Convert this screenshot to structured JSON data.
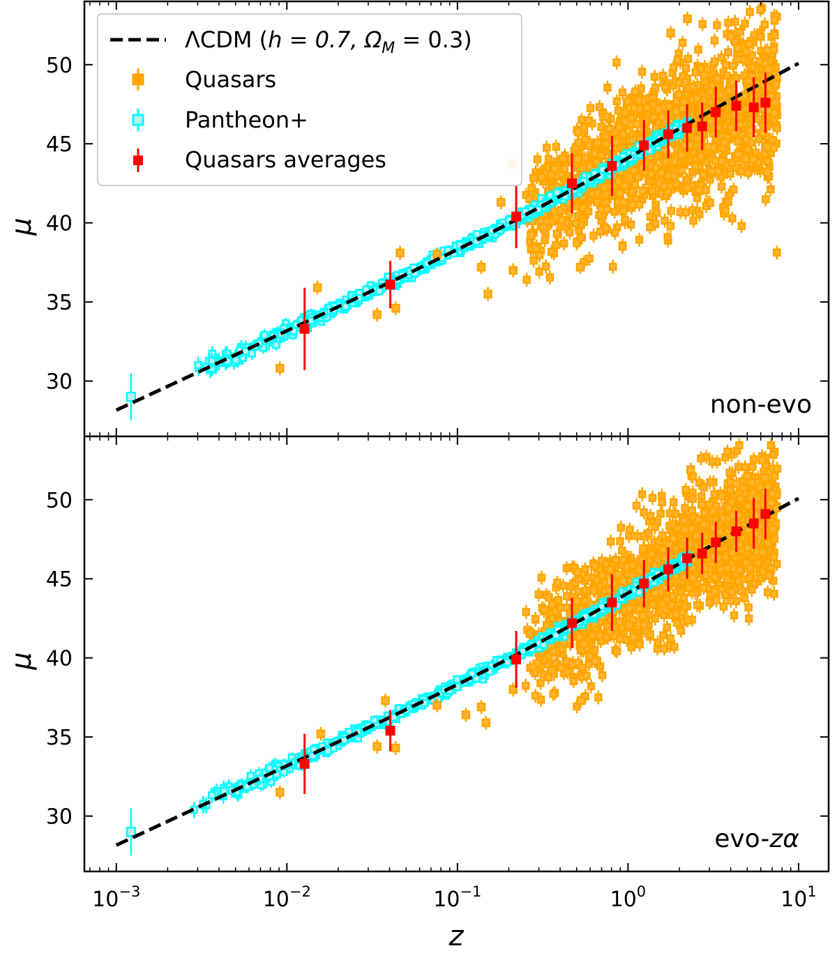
{
  "chart_data": {
    "type": "scatter",
    "xscale": "log",
    "xlim": [
      0.00065,
      15
    ],
    "ylim": [
      26.5,
      54
    ],
    "xlabel": "z",
    "ylabel": "μ",
    "xticks": [
      {
        "value": 0.001,
        "base": "10",
        "exp": "−3"
      },
      {
        "value": 0.01,
        "base": "10",
        "exp": "−2"
      },
      {
        "value": 0.1,
        "base": "10",
        "exp": "−1"
      },
      {
        "value": 1,
        "base": "10",
        "exp": "0"
      },
      {
        "value": 10,
        "base": "10",
        "exp": "1"
      }
    ],
    "yticks": [
      30,
      35,
      40,
      45,
      50
    ],
    "legend": {
      "position": "top-left",
      "entries": [
        {
          "key": "lcdm",
          "label_prefix": "ΛCDM (",
          "label_math": "h = 0.7, Ω",
          "label_sub": "M",
          "label_suffix": " = 0.3)",
          "color": "#000000"
        },
        {
          "key": "quasars",
          "label": "Quasars",
          "color": "#ffa500"
        },
        {
          "key": "pantheon",
          "label": "Pantheon+",
          "color": "#00ffff"
        },
        {
          "key": "averages",
          "label": "Quasars averages",
          "color": "#ff0000"
        }
      ]
    },
    "colors": {
      "quasars": "#ffa500",
      "pantheon": "#00ffff",
      "averages": "#ff0000",
      "model": "#000000"
    },
    "model": {
      "name": "ΛCDM",
      "h": 0.7,
      "omega_m": 0.3,
      "style": "dashed",
      "x_range": [
        0.001,
        10
      ]
    },
    "panels": [
      {
        "label": "non-evo",
        "averages": {
          "z": [
            0.0127,
            0.0404,
            0.221,
            0.469,
            0.805,
            1.24,
            1.72,
            2.22,
            2.72,
            3.27,
            4.31,
            5.46,
            6.39
          ],
          "mu": [
            33.3,
            36.1,
            40.4,
            42.5,
            43.6,
            44.9,
            45.6,
            46.0,
            46.1,
            47.0,
            47.4,
            47.3,
            47.6
          ],
          "err": [
            2.6,
            1.5,
            2.0,
            1.9,
            1.9,
            1.6,
            1.5,
            1.5,
            1.5,
            1.6,
            1.6,
            1.9,
            1.9
          ]
        },
        "pantheon_isolated": [
          {
            "z": 0.00122,
            "mu": 29.0,
            "err": 1.5
          }
        ],
        "quasar_outliers": [
          {
            "z": 0.0091,
            "mu": 30.8
          },
          {
            "z": 0.0151,
            "mu": 35.9
          },
          {
            "z": 0.0338,
            "mu": 34.2
          },
          {
            "z": 0.0435,
            "mu": 34.6
          },
          {
            "z": 0.0461,
            "mu": 38.1
          },
          {
            "z": 0.0759,
            "mu": 38.0
          },
          {
            "z": 0.138,
            "mu": 37.2
          },
          {
            "z": 0.151,
            "mu": 35.5
          },
          {
            "z": 0.212,
            "mu": 37.0
          },
          {
            "z": 0.209,
            "mu": 43.7
          },
          {
            "z": 0.288,
            "mu": 38.4
          },
          {
            "z": 0.525,
            "mu": 37.2
          },
          {
            "z": 2.23,
            "mu": 52.9
          },
          {
            "z": 1.78,
            "mu": 52.0
          },
          {
            "z": 6.52,
            "mu": 44.8
          },
          {
            "z": 6.54,
            "mu": 43.2
          },
          {
            "z": 0.18,
            "mu": 41.3
          },
          {
            "z": 0.27,
            "mu": 39.2
          }
        ]
      },
      {
        "label_text": "evo-",
        "label_italic": "zα",
        "averages": {
          "z": [
            0.0127,
            0.0404,
            0.221,
            0.469,
            0.805,
            1.24,
            1.72,
            2.22,
            2.72,
            3.27,
            4.31,
            5.46,
            6.39
          ],
          "mu": [
            33.3,
            35.4,
            39.9,
            42.2,
            43.5,
            44.7,
            45.6,
            46.3,
            46.6,
            47.3,
            48.0,
            48.5,
            49.1
          ],
          "err": [
            1.9,
            1.3,
            1.8,
            1.6,
            1.8,
            1.5,
            1.4,
            1.3,
            1.3,
            1.3,
            1.3,
            1.6,
            1.6
          ]
        },
        "pantheon_isolated": [
          {
            "z": 0.00122,
            "mu": 29.0,
            "err": 1.5
          }
        ],
        "quasar_outliers": [
          {
            "z": 0.0091,
            "mu": 31.5
          },
          {
            "z": 0.0158,
            "mu": 35.2
          },
          {
            "z": 0.0338,
            "mu": 34.4
          },
          {
            "z": 0.0434,
            "mu": 34.3
          },
          {
            "z": 0.0378,
            "mu": 37.3
          },
          {
            "z": 0.0759,
            "mu": 37.0
          },
          {
            "z": 0.112,
            "mu": 36.4
          },
          {
            "z": 0.138,
            "mu": 36.9
          },
          {
            "z": 0.147,
            "mu": 35.9
          },
          {
            "z": 0.212,
            "mu": 38.0
          },
          {
            "z": 2.33,
            "mu": 51.9
          },
          {
            "z": 6.36,
            "mu": 51.4
          },
          {
            "z": 6.12,
            "mu": 52.5
          },
          {
            "z": 4.33,
            "mu": 51.0
          },
          {
            "z": 0.53,
            "mu": 37.3
          }
        ]
      }
    ]
  }
}
